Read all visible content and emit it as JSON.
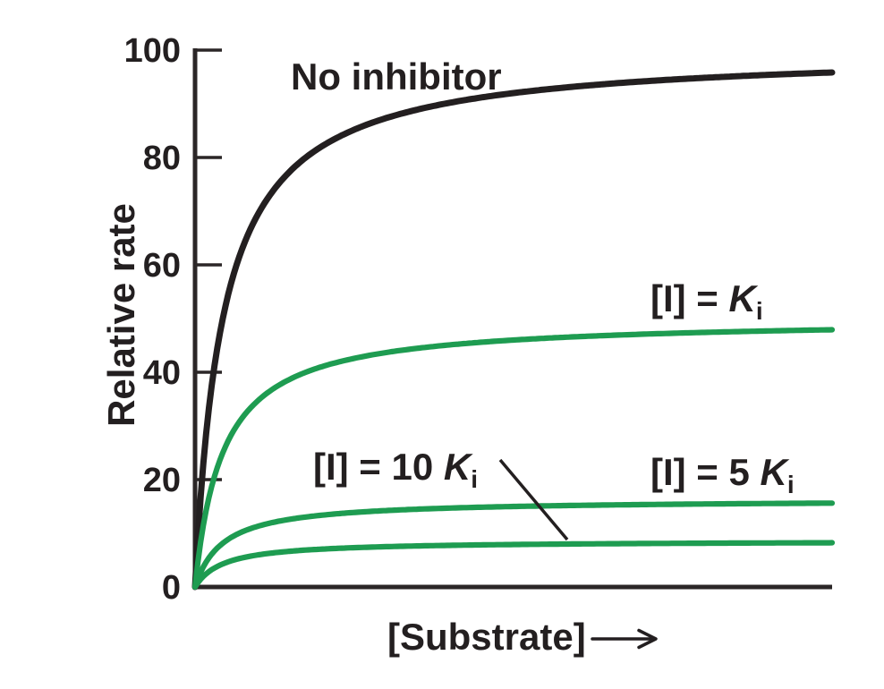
{
  "chart_data": {
    "type": "line",
    "title": "",
    "xlabel": "[Substrate]",
    "ylabel": "Relative rate",
    "x_axis": {
      "label": "[Substrate]",
      "has_arrow": true,
      "ticks": [],
      "range_s_over_km": [
        0,
        23
      ]
    },
    "y_axis": {
      "ticks": [
        100,
        80,
        60,
        40,
        20,
        0
      ],
      "tick_labels": [
        "100",
        "80",
        "60",
        "40",
        "20",
        "0"
      ],
      "range": [
        0,
        100
      ]
    },
    "model": "michaelis-menten: v = vmax * s / (km + s), s = [S]/Km",
    "km": 1,
    "x_max": 23,
    "grid": false,
    "legend": "inline labels next to curves",
    "sample_x_over_km": [
      0,
      1,
      2,
      4,
      8,
      16,
      23
    ],
    "series": [
      {
        "id": "no-inhibitor",
        "name": "No inhibitor",
        "color": "#231f20",
        "vmax": 100,
        "plateau_shown": 95.8,
        "sample_y": [
          0,
          50,
          66.7,
          80,
          88.9,
          94.1,
          95.8
        ],
        "label_parts": {
          "prefix": "No inhibitor",
          "k": "",
          "sub": ""
        }
      },
      {
        "id": "ki",
        "name": "[I] = Ki",
        "color": "#1e9c51",
        "vmax": 50,
        "plateau_shown": 47.9,
        "sample_y": [
          0,
          25,
          33.3,
          40,
          44.4,
          47.1,
          47.9
        ],
        "label_parts": {
          "prefix": "[I] = ",
          "k": "K",
          "sub": "i"
        }
      },
      {
        "id": "5ki",
        "name": "[I] = 5 Ki",
        "color": "#1e9c51",
        "vmax": 16.3,
        "plateau_shown": 15.6,
        "sample_y": [
          0,
          8.2,
          10.9,
          13,
          14.5,
          15.3,
          15.6
        ],
        "label_parts": {
          "prefix": "[I] = 5 ",
          "k": "K",
          "sub": "i"
        }
      },
      {
        "id": "10ki",
        "name": "[I] = 10 Ki",
        "color": "#1e9c51",
        "vmax": 8.6,
        "plateau_shown": 8.2,
        "sample_y": [
          0,
          4.3,
          5.7,
          6.9,
          7.6,
          8.1,
          8.2
        ],
        "label_parts": {
          "prefix": "[I] = 10 ",
          "k": "K",
          "sub": "i"
        }
      }
    ],
    "style": {
      "background": "#ffffff",
      "axis_color": "#2b2627",
      "text_color": "#231f20",
      "curve_black": "#231f20",
      "curve_green": "#1e9c51",
      "leader_line_color": "#231f20"
    }
  }
}
